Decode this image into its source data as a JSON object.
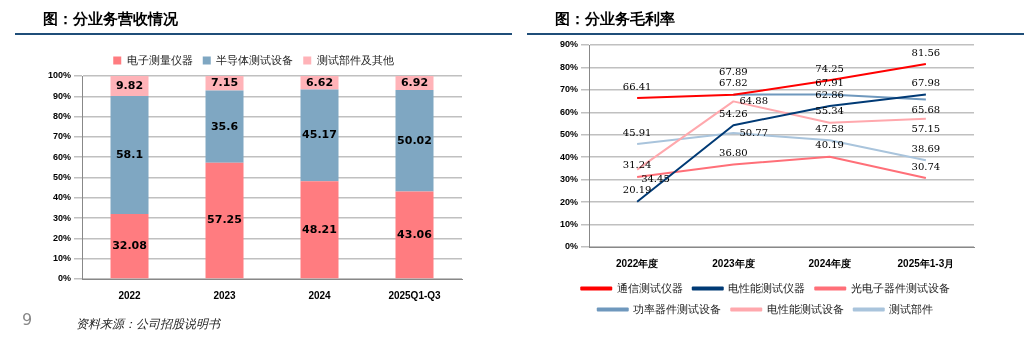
{
  "chart_data": [
    {
      "type": "bar",
      "title": "图：分业务营收情况",
      "categories": [
        "2022",
        "2023",
        "2024",
        "2025Q1-Q3"
      ],
      "stacked": true,
      "data_labels": true,
      "legend": "top",
      "grid": "y",
      "ylim": [
        0,
        100
      ],
      "yticks": [
        {
          "value": 0,
          "label": "0%"
        },
        {
          "value": 10,
          "label": "10%"
        },
        {
          "value": 20,
          "label": "20%"
        },
        {
          "value": 30,
          "label": "30%"
        },
        {
          "value": 40,
          "label": "40%"
        },
        {
          "value": 50,
          "label": "50%"
        },
        {
          "value": 60,
          "label": "60%"
        },
        {
          "value": 70,
          "label": "70%"
        },
        {
          "value": 80,
          "label": "80%"
        },
        {
          "value": 90,
          "label": "90%"
        },
        {
          "value": 100,
          "label": "100%"
        }
      ],
      "series": [
        {
          "name": "电子测量仪器",
          "color": "#ff7c80",
          "values": [
            32.08,
            57.25,
            48.21,
            43.06
          ]
        },
        {
          "name": "半导体测试设备",
          "color": "#7fa7c2",
          "values": [
            58.1,
            35.6,
            45.17,
            50.02
          ]
        },
        {
          "name": "测试部件及其他",
          "color": "#ffb3b8",
          "values": [
            9.82,
            7.15,
            6.62,
            6.92
          ]
        }
      ],
      "annotations": [
        "9",
        "资料来源：公司招股说明书"
      ]
    },
    {
      "type": "line",
      "title": "图：分业务毛利率",
      "categories": [
        "2022年度",
        "2023年度",
        "2024年度",
        "2025年1-3月"
      ],
      "legend": "bottom",
      "grid": "y",
      "marker": "none",
      "ylim": [
        0,
        90
      ],
      "yticks": [
        {
          "value": 0,
          "label": "0%"
        },
        {
          "value": 10,
          "label": "10%"
        },
        {
          "value": 20,
          "label": "20%"
        },
        {
          "value": 30,
          "label": "30%"
        },
        {
          "value": 40,
          "label": "40%"
        },
        {
          "value": 50,
          "label": "50%"
        },
        {
          "value": 60,
          "label": "60%"
        },
        {
          "value": 70,
          "label": "70%"
        },
        {
          "value": 80,
          "label": "80%"
        },
        {
          "value": 90,
          "label": "90%"
        }
      ],
      "series": [
        {
          "name": "通信测试仪器",
          "color": "#ff0000",
          "values": [
            66.41,
            67.82,
            74.25,
            81.56
          ],
          "value_labels": [
            "66.41",
            "67.82",
            "74.25",
            "81.56"
          ]
        },
        {
          "name": "电性能测试仪器",
          "color": "#003a75",
          "values": [
            20.19,
            54.26,
            62.86,
            67.98
          ],
          "value_labels": [
            "20.19",
            "54.26",
            "62.86",
            "67.98"
          ]
        },
        {
          "name": "光电子器件测试设备",
          "color": "#ff6f78",
          "values": [
            31.24,
            36.8,
            40.19,
            30.74
          ],
          "value_labels": [
            "31.24",
            "36.80",
            "40.19",
            "30.74"
          ]
        },
        {
          "name": "功率器件测试设备",
          "color": "#6f98bd",
          "values": [
            null,
            67.89,
            67.91,
            65.68
          ],
          "value_labels": [
            null,
            "67.89",
            "67.91",
            "65.68"
          ]
        },
        {
          "name": "电性能测试设备",
          "color": "#ffa8ad",
          "values": [
            34.45,
            64.88,
            55.34,
            57.15
          ],
          "value_labels": [
            "34.45",
            "64.88",
            "55.34",
            "57.15"
          ]
        },
        {
          "name": "测试部件",
          "color": "#a9c4dc",
          "values": [
            45.91,
            50.77,
            47.58,
            38.69
          ],
          "value_labels": [
            "45.91",
            "50.77",
            "47.58",
            "38.69"
          ]
        }
      ]
    }
  ]
}
